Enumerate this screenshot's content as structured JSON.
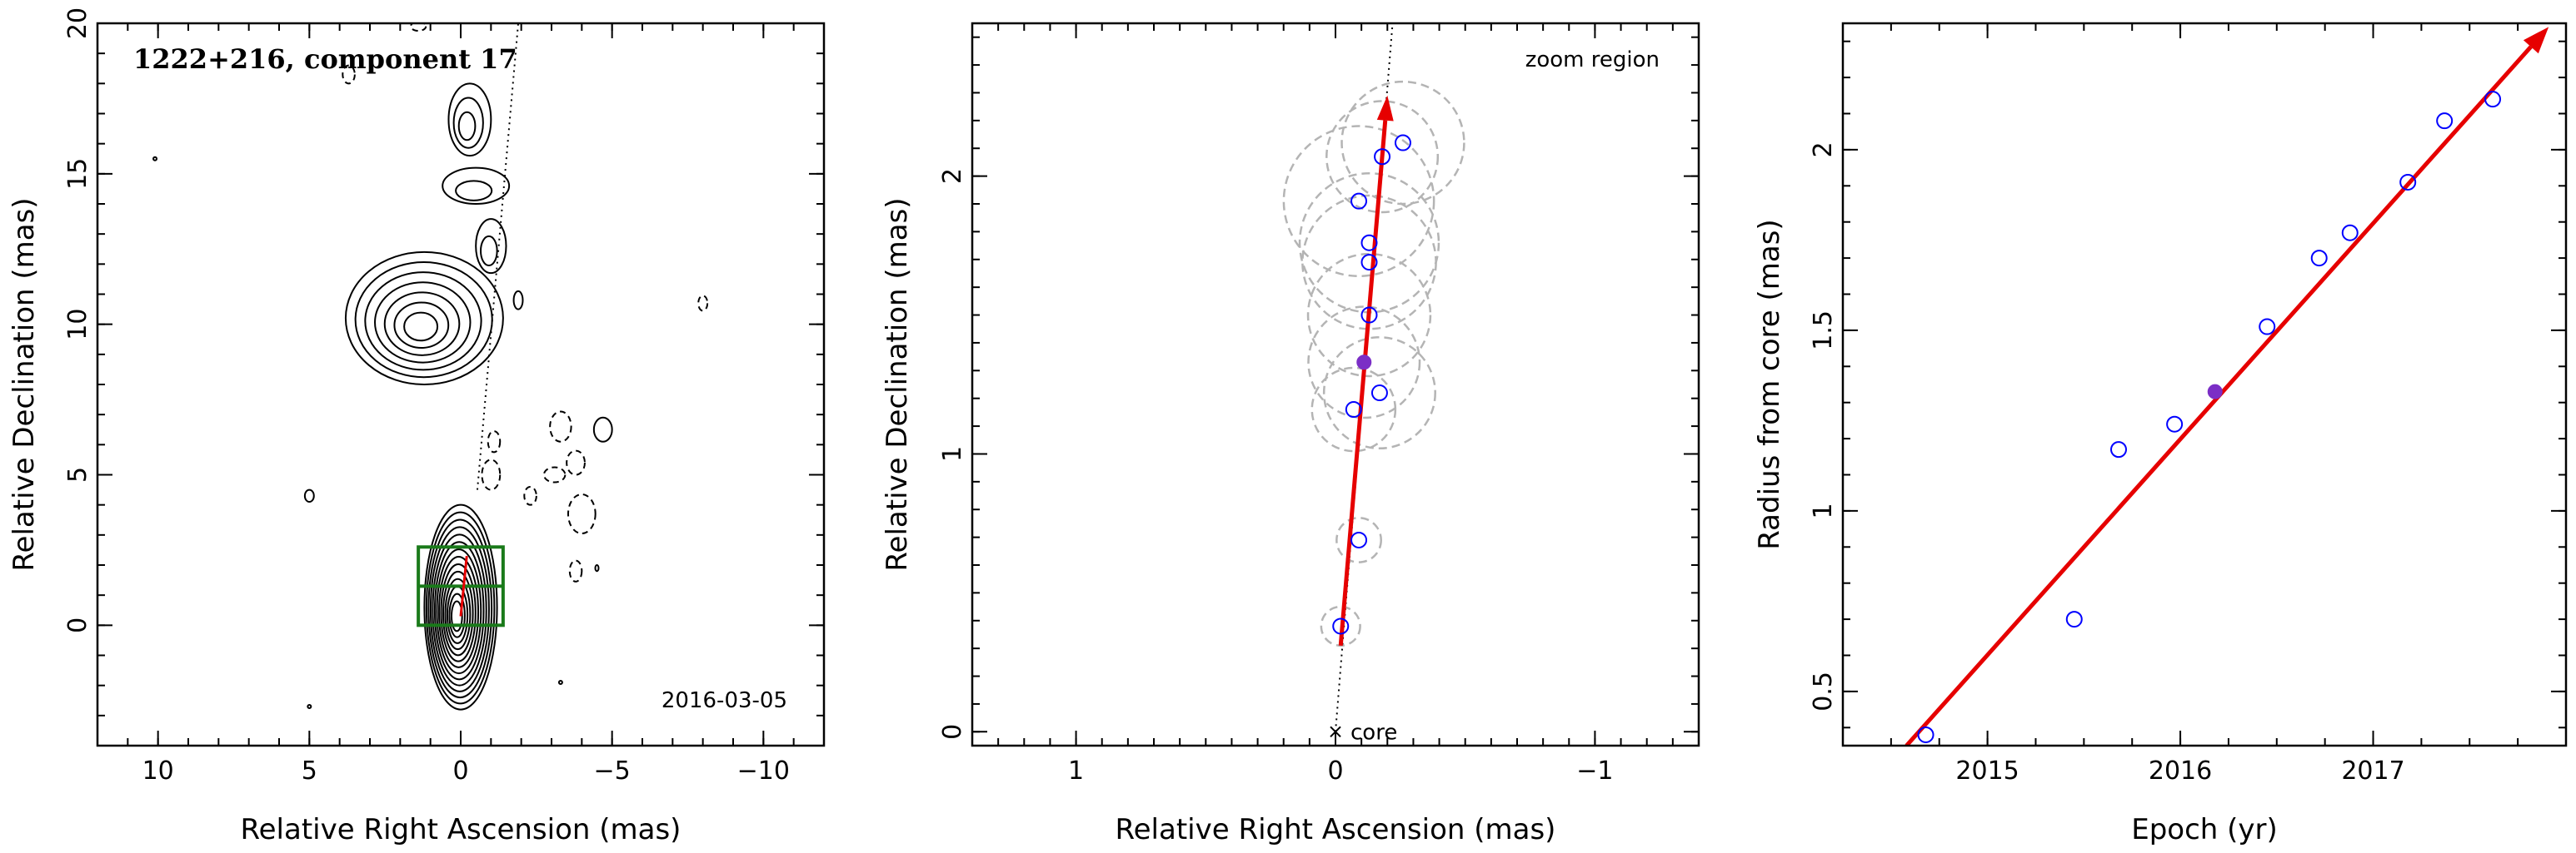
{
  "chart_data": [
    {
      "type": "contour",
      "title": "1222+216, component 17",
      "date": "2016-03-05",
      "xlabel": "Relative Right Ascension (mas)",
      "ylabel": "Relative Declination (mas)",
      "xlim": [
        12,
        -12
      ],
      "ylim": [
        -4,
        20
      ],
      "xticks": [
        10,
        5,
        0,
        -5,
        -10
      ],
      "xtick_labels": [
        "10",
        "5",
        "0",
        "−5",
        "−10"
      ],
      "yticks": [
        0,
        5,
        10,
        15,
        20
      ],
      "ytick_labels": [
        "0",
        "5",
        "10",
        "15",
        "20"
      ],
      "colors": {
        "zoom_box": "#1a7a1a",
        "arrow": "#e60000"
      },
      "zoom_region": {
        "x": [
          -1.4,
          1.4
        ],
        "y": [
          0,
          2.6
        ]
      },
      "jet_axis": [
        [
          -0.55,
          4.5
        ],
        [
          -1.9,
          20
        ]
      ],
      "blobs": [
        {
          "x": 0,
          "y": 0.6,
          "rx": 1.2,
          "ry": 3.4,
          "n": 14,
          "solid": true
        },
        {
          "x": 1.2,
          "y": 10.2,
          "rx": 2.6,
          "ry": 2.2,
          "n": 7,
          "solid": true
        },
        {
          "x": -0.5,
          "y": 14.6,
          "rx": 1.1,
          "ry": 0.6,
          "n": 2,
          "solid": true
        },
        {
          "x": -0.3,
          "y": 16.8,
          "rx": 0.7,
          "ry": 1.2,
          "n": 3,
          "solid": true
        },
        {
          "x": -1.0,
          "y": 12.6,
          "rx": 0.5,
          "ry": 0.9,
          "n": 2,
          "solid": true
        },
        {
          "x": -4.7,
          "y": 6.5,
          "rx": 0.3,
          "ry": 0.4,
          "n": 1,
          "solid": true
        },
        {
          "x": -1.9,
          "y": 10.8,
          "rx": 0.15,
          "ry": 0.3,
          "n": 1,
          "solid": true
        },
        {
          "x": 5.0,
          "y": 4.3,
          "rx": 0.15,
          "ry": 0.2,
          "n": 1,
          "solid": true
        },
        {
          "x": -8.0,
          "y": 10.7,
          "rx": 0.15,
          "ry": 0.25,
          "n": 1,
          "solid": false
        },
        {
          "x": -1.0,
          "y": 5.0,
          "rx": 0.3,
          "ry": 0.5,
          "n": 1,
          "solid": false
        },
        {
          "x": -1.1,
          "y": 6.1,
          "rx": 0.2,
          "ry": 0.35,
          "n": 1,
          "solid": false
        },
        {
          "x": -3.1,
          "y": 5.0,
          "rx": 0.35,
          "ry": 0.25,
          "n": 1,
          "solid": false
        },
        {
          "x": -2.3,
          "y": 4.3,
          "rx": 0.2,
          "ry": 0.3,
          "n": 1,
          "solid": false
        },
        {
          "x": -3.3,
          "y": 6.6,
          "rx": 0.35,
          "ry": 0.5,
          "n": 1,
          "solid": false
        },
        {
          "x": -3.8,
          "y": 5.4,
          "rx": 0.3,
          "ry": 0.4,
          "n": 1,
          "solid": false
        },
        {
          "x": -4.0,
          "y": 3.7,
          "rx": 0.45,
          "ry": 0.65,
          "n": 1,
          "solid": false
        },
        {
          "x": -3.8,
          "y": 1.8,
          "rx": 0.2,
          "ry": 0.35,
          "n": 1,
          "solid": false
        },
        {
          "x": 3.7,
          "y": 18.3,
          "rx": 0.2,
          "ry": 0.3,
          "n": 1,
          "solid": false
        },
        {
          "x": 1.4,
          "y": 19.9,
          "rx": 0.25,
          "ry": 0.15,
          "n": 1,
          "solid": false
        },
        {
          "x": -4.5,
          "y": 1.9,
          "rx": 0.05,
          "ry": 0.1,
          "n": 1,
          "solid": true
        },
        {
          "x": 10.1,
          "y": 15.5,
          "rx": 0.05,
          "ry": 0.05,
          "n": 1,
          "solid": true
        },
        {
          "x": -3.3,
          "y": -1.9,
          "rx": 0.05,
          "ry": 0.05,
          "n": 1,
          "solid": true
        },
        {
          "x": 5.0,
          "y": -2.7,
          "rx": 0.05,
          "ry": 0.05,
          "n": 1,
          "solid": true
        }
      ]
    },
    {
      "type": "scatter",
      "annotation": "zoom region",
      "core_label": "core",
      "xlabel": "Relative Right Ascension (mas)",
      "ylabel": "Relative Declination (mas)",
      "xlim": [
        1.4,
        -1.4
      ],
      "ylim": [
        -0.05,
        2.55
      ],
      "xticks": [
        1,
        0,
        -1
      ],
      "xtick_labels": [
        "1",
        "0",
        "−1"
      ],
      "yticks": [
        0,
        1,
        2
      ],
      "ytick_labels": [
        "0",
        "1",
        "2"
      ],
      "colors": {
        "point": "#0000ff",
        "highlight": "#7b2ec6",
        "circle": "#b4b4b4",
        "arrow": "#e60000"
      },
      "jet_axis": [
        [
          0,
          0
        ],
        [
          -0.22,
          2.55
        ]
      ],
      "arrow": {
        "from": [
          -0.02,
          0.31
        ],
        "to": [
          -0.2,
          2.29
        ]
      },
      "points": [
        {
          "x": -0.02,
          "y": 0.38,
          "r": 0.07
        },
        {
          "x": -0.09,
          "y": 0.69,
          "r": 0.08
        },
        {
          "x": -0.07,
          "y": 1.16,
          "r": 0.15
        },
        {
          "x": -0.17,
          "y": 1.22,
          "r": 0.2
        },
        {
          "x": -0.11,
          "y": 1.33,
          "r": 0.2,
          "highlight": true
        },
        {
          "x": -0.13,
          "y": 1.5,
          "r": 0.22
        },
        {
          "x": -0.13,
          "y": 1.69,
          "r": 0.24
        },
        {
          "x": -0.13,
          "y": 1.76,
          "r": 0.25
        },
        {
          "x": -0.09,
          "y": 1.91,
          "r": 0.27
        },
        {
          "x": -0.18,
          "y": 2.07,
          "r": 0.2
        },
        {
          "x": -0.26,
          "y": 2.12,
          "r": 0.22
        }
      ]
    },
    {
      "type": "scatter",
      "xlabel": "Epoch (yr)",
      "ylabel": "Radius from core (mas)",
      "xlim": [
        2014.25,
        2018.0
      ],
      "ylim": [
        0.35,
        2.35
      ],
      "xticks": [
        2015,
        2016,
        2017
      ],
      "xtick_labels": [
        "2015",
        "2016",
        "2017"
      ],
      "yticks": [
        0.5,
        1,
        1.5,
        2
      ],
      "ytick_labels": [
        "0.5",
        "1",
        "1.5",
        "2"
      ],
      "colors": {
        "point": "#0000ff",
        "highlight": "#7b2ec6",
        "fit": "#e60000"
      },
      "fit": {
        "from": [
          2014.58,
          0.35
        ],
        "to": [
          2017.91,
          2.34
        ]
      },
      "points": [
        {
          "x": 2014.68,
          "y": 0.38
        },
        {
          "x": 2015.45,
          "y": 0.7
        },
        {
          "x": 2015.68,
          "y": 1.17
        },
        {
          "x": 2015.97,
          "y": 1.24
        },
        {
          "x": 2016.18,
          "y": 1.33,
          "highlight": true
        },
        {
          "x": 2016.45,
          "y": 1.51
        },
        {
          "x": 2016.72,
          "y": 1.7
        },
        {
          "x": 2016.88,
          "y": 1.77
        },
        {
          "x": 2017.18,
          "y": 1.91
        },
        {
          "x": 2017.37,
          "y": 2.08
        },
        {
          "x": 2017.62,
          "y": 2.14
        }
      ]
    }
  ]
}
